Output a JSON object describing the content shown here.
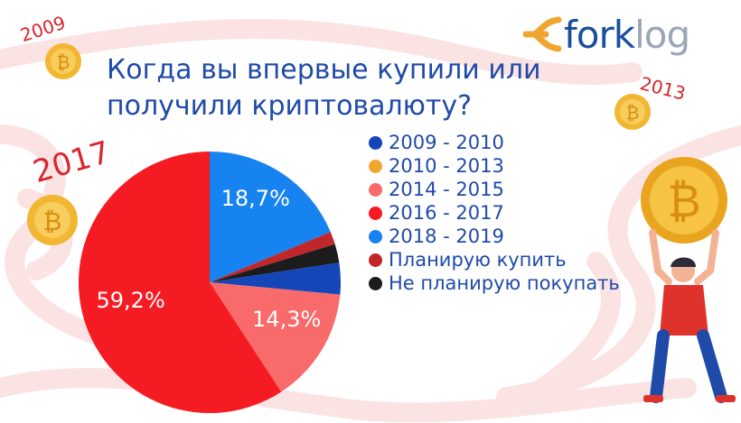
{
  "title": "Когда вы впервые купили или получили криптовалюту?",
  "logo": {
    "part1": "fork",
    "part2": "log"
  },
  "decor_years": {
    "y2009": "2009",
    "y2013": "2013",
    "y2017": "2017"
  },
  "colors": {
    "2009-2010": "#1546b8",
    "2010-2013": "#f0a531",
    "2014-2015": "#f86b6a",
    "2016-2017": "#f51b22",
    "2018-2019": "#1783f0",
    "plan": "#c1262a",
    "no_plan": "#1c1c1c"
  },
  "chart_data": {
    "type": "pie",
    "title": "Когда вы впервые купили или получили криптовалюту?",
    "legend_position": "right",
    "slices": [
      {
        "label": "2009 - 2010",
        "value": 0,
        "label_text": "",
        "color": "#1546b8"
      },
      {
        "label": "2010 - 2013",
        "value": 0,
        "label_text": "",
        "color": "#f0a531"
      },
      {
        "label": "2014 - 2015",
        "value": 14.3,
        "label_text": "14,3%",
        "color": "#f86b6a"
      },
      {
        "label": "2016 - 2017",
        "value": 59.2,
        "label_text": "59,2%",
        "color": "#f51b22"
      },
      {
        "label": "2018 - 2019",
        "value": 18.7,
        "label_text": "18,7%",
        "color": "#1783f0"
      },
      {
        "label": "Планирую купить",
        "value": 1.6,
        "label_text": "",
        "color": "#c1262a"
      },
      {
        "label": "Не планирую покупать",
        "value": 2.3,
        "label_text": "",
        "color": "#1c1c1c"
      }
    ],
    "draw_order": [
      "2009 - 2010",
      "2014 - 2015",
      "2016 - 2017",
      "2018 - 2019",
      "Планирую купить",
      "Не планирую покупать"
    ],
    "extra_2009_2010_value": 3.9
  }
}
